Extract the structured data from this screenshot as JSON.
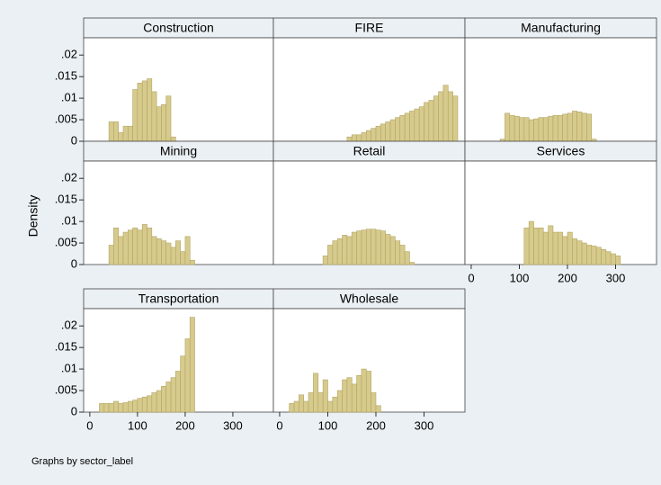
{
  "chart_data": {
    "type": "histogram",
    "ylabel": "Density",
    "note": "Graphs by sector_label",
    "color": "#d6ca8c",
    "xlim": [
      -13,
      385
    ],
    "ylim": [
      0,
      0.024
    ],
    "xticks": [
      0,
      100,
      200,
      300
    ],
    "yticks": [
      0,
      {
        "value": 0.005,
        "label": ".005"
      },
      {
        "value": 0.01,
        "label": ".01"
      },
      {
        "value": 0.015,
        "label": ".015"
      },
      {
        "value": 0.02,
        "label": ".02"
      }
    ],
    "panels": [
      {
        "title": "Construction",
        "bins": [
          40,
          50,
          60,
          70,
          80,
          90,
          100,
          110,
          120,
          130,
          140,
          150,
          160,
          170,
          180
        ],
        "values": [
          0.0045,
          0.0045,
          0.002,
          0.0035,
          0.0035,
          0.012,
          0.0135,
          0.014,
          0.0145,
          0.0115,
          0.008,
          0.0085,
          0.0105,
          0.001
        ]
      },
      {
        "title": "FIRE",
        "bins": [
          140,
          150,
          160,
          170,
          180,
          190,
          200,
          210,
          220,
          230,
          240,
          250,
          260,
          270,
          280,
          290,
          300,
          310,
          320,
          330,
          340,
          350,
          360,
          370
        ],
        "values": [
          0.001,
          0.0015,
          0.0015,
          0.002,
          0.0025,
          0.003,
          0.0035,
          0.004,
          0.0045,
          0.005,
          0.0055,
          0.006,
          0.0065,
          0.007,
          0.0075,
          0.008,
          0.009,
          0.0095,
          0.0105,
          0.0115,
          0.013,
          0.0115,
          0.0105
        ]
      },
      {
        "title": "Manufacturing",
        "bins": [
          60,
          70,
          80,
          90,
          100,
          110,
          120,
          130,
          140,
          150,
          160,
          170,
          180,
          190,
          200,
          210,
          220,
          230,
          240,
          250,
          260
        ],
        "values": [
          0.0005,
          0.0065,
          0.006,
          0.0058,
          0.0055,
          0.0055,
          0.005,
          0.0052,
          0.0055,
          0.0055,
          0.0058,
          0.006,
          0.006,
          0.0063,
          0.0065,
          0.007,
          0.0068,
          0.0065,
          0.0063,
          0.0005
        ]
      },
      {
        "title": "Mining",
        "bins": [
          40,
          50,
          60,
          70,
          80,
          90,
          100,
          110,
          120,
          130,
          140,
          150,
          160,
          170,
          180,
          190,
          200,
          210,
          220
        ],
        "values": [
          0.0045,
          0.0085,
          0.0065,
          0.0075,
          0.008,
          0.0085,
          0.008,
          0.0093,
          0.0085,
          0.0065,
          0.006,
          0.0055,
          0.005,
          0.004,
          0.0055,
          0.003,
          0.0065,
          0.001
        ]
      },
      {
        "title": "Retail",
        "bins": [
          90,
          100,
          110,
          120,
          130,
          140,
          150,
          160,
          170,
          180,
          190,
          200,
          210,
          220,
          230,
          240,
          250,
          260,
          270,
          280
        ],
        "values": [
          0.002,
          0.0045,
          0.0055,
          0.006,
          0.0068,
          0.0065,
          0.0075,
          0.0078,
          0.008,
          0.0082,
          0.0082,
          0.008,
          0.0078,
          0.007,
          0.0065,
          0.0055,
          0.0045,
          0.003,
          0.0005
        ]
      },
      {
        "title": "Services",
        "bins": [
          110,
          120,
          130,
          140,
          150,
          160,
          170,
          180,
          190,
          200,
          210,
          220,
          230,
          240,
          250,
          260,
          270,
          280,
          290,
          300,
          310
        ],
        "values": [
          0.0085,
          0.01,
          0.0085,
          0.0085,
          0.0075,
          0.009,
          0.0075,
          0.0075,
          0.0065,
          0.0075,
          0.006,
          0.0055,
          0.005,
          0.0045,
          0.0043,
          0.004,
          0.0035,
          0.003,
          0.0025,
          0.002
        ]
      },
      {
        "title": "Transportation",
        "bins": [
          20,
          30,
          40,
          50,
          60,
          70,
          80,
          90,
          100,
          110,
          120,
          130,
          140,
          150,
          160,
          170,
          180,
          190,
          200,
          210,
          220
        ],
        "values": [
          0.002,
          0.002,
          0.002,
          0.0025,
          0.002,
          0.0022,
          0.0025,
          0.0028,
          0.0032,
          0.0035,
          0.0038,
          0.0045,
          0.005,
          0.006,
          0.007,
          0.008,
          0.0095,
          0.013,
          0.017,
          0.022
        ]
      },
      {
        "title": "Wholesale",
        "bins": [
          20,
          30,
          40,
          50,
          60,
          70,
          80,
          90,
          100,
          110,
          120,
          130,
          140,
          150,
          160,
          170,
          180,
          190,
          200,
          210
        ],
        "values": [
          0.002,
          0.0025,
          0.004,
          0.0025,
          0.0045,
          0.009,
          0.0045,
          0.0075,
          0.0025,
          0.0035,
          0.005,
          0.0075,
          0.008,
          0.0065,
          0.0085,
          0.01,
          0.0095,
          0.0045,
          0.0015
        ]
      }
    ]
  }
}
